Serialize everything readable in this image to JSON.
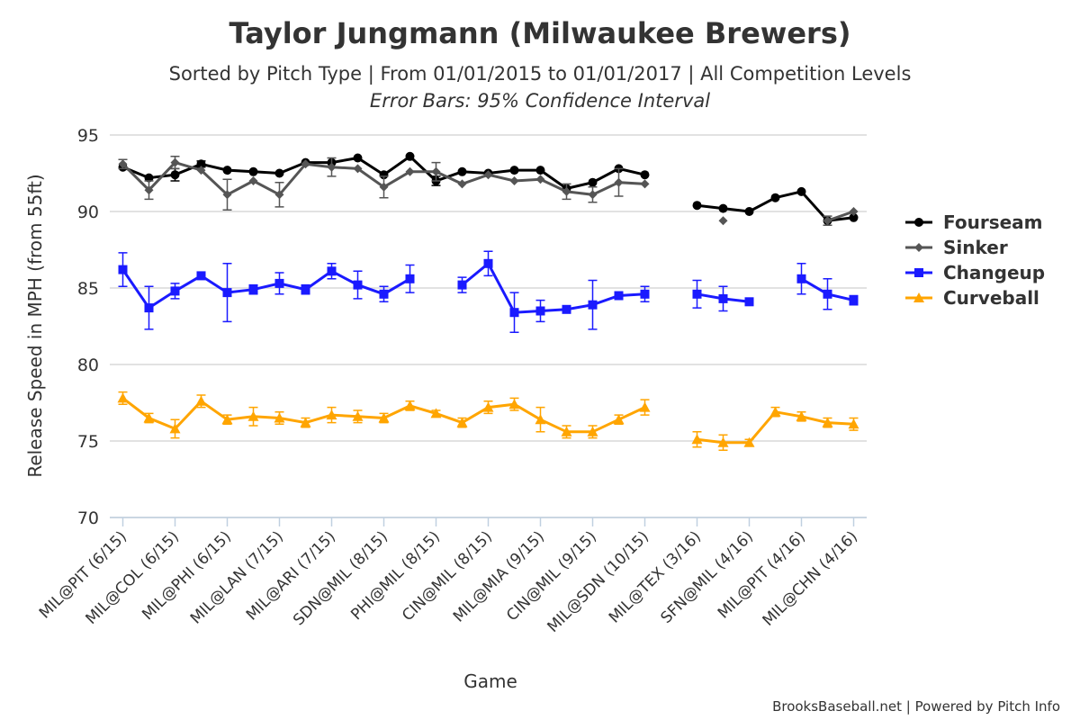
{
  "chart_data": {
    "type": "line",
    "title": "Taylor Jungmann (Milwaukee Brewers)",
    "subtitle": "Sorted by Pitch Type | From 01/01/2015 to 01/01/2017 | All Competition Levels",
    "note": "Error Bars: 95% Confidence Interval",
    "x_label": "Game",
    "y_label": "Release Speed in MPH (from 55ft)",
    "credits": "BrooksBaseball.net | Powered by Pitch Info",
    "categories": [
      "MIL@PIT (6/15)",
      null,
      "MIL@COL (6/15)",
      null,
      "MIL@PHI (6/15)",
      null,
      "MIL@LAN (7/15)",
      null,
      "MIL@ARI (7/15)",
      null,
      "SDN@MIL (8/15)",
      null,
      "PHI@MIL (8/15)",
      null,
      "CIN@MIL (8/15)",
      null,
      "MIL@MIA (9/15)",
      null,
      "CIN@MIL (9/15)",
      null,
      "MIL@SDN (10/15)",
      null,
      "MIL@TEX (3/16)",
      null,
      "SFN@MIL (4/16)",
      null,
      "MIL@PIT (4/16)",
      null,
      "MIL@CHN (4/16)"
    ],
    "ylim": [
      70,
      95
    ],
    "yticks": [
      70,
      75,
      80,
      85,
      90,
      95
    ],
    "grid": true,
    "legend": "right",
    "series": [
      {
        "name": "Fourseam",
        "color": "#000000",
        "marker": "circle",
        "values": [
          92.9,
          92.2,
          92.4,
          93.1,
          92.7,
          92.6,
          92.5,
          93.2,
          93.2,
          93.5,
          92.4,
          93.6,
          92.0,
          92.6,
          92.5,
          92.7,
          92.7,
          91.5,
          91.9,
          92.8,
          92.4,
          null,
          90.4,
          90.2,
          90.0,
          90.9,
          91.3,
          89.4,
          89.6
        ],
        "errors": [
          null,
          null,
          0.4,
          0.2,
          null,
          null,
          null,
          null,
          null,
          null,
          null,
          null,
          0.3,
          null,
          null,
          null,
          null,
          null,
          null,
          null,
          null,
          null,
          null,
          null,
          null,
          null,
          null,
          null,
          null
        ]
      },
      {
        "name": "Sinker",
        "color": "#555555",
        "marker": "diamond",
        "values": [
          93.1,
          91.4,
          93.2,
          92.7,
          91.1,
          92.0,
          91.1,
          93.1,
          92.9,
          92.8,
          91.6,
          92.6,
          92.6,
          91.8,
          92.4,
          92.0,
          92.1,
          91.3,
          91.1,
          91.9,
          91.8,
          null,
          null,
          89.4,
          null,
          null,
          null,
          89.4,
          90.0
        ],
        "errors": [
          0.3,
          0.6,
          0.4,
          null,
          1.0,
          null,
          0.8,
          null,
          0.6,
          null,
          0.7,
          null,
          0.6,
          null,
          null,
          null,
          null,
          0.5,
          0.5,
          0.9,
          null,
          null,
          null,
          null,
          null,
          null,
          null,
          0.3,
          null
        ]
      },
      {
        "name": "Changeup",
        "color": "#1a1aff",
        "marker": "square",
        "values": [
          86.2,
          83.7,
          84.8,
          85.8,
          84.7,
          84.9,
          85.3,
          84.9,
          86.1,
          85.2,
          84.6,
          85.6,
          null,
          85.2,
          86.6,
          83.4,
          83.5,
          83.6,
          83.9,
          84.5,
          84.6,
          null,
          84.6,
          84.3,
          84.1,
          null,
          85.6,
          84.6,
          84.2
        ],
        "errors": [
          1.1,
          1.4,
          0.5,
          null,
          1.9,
          0.3,
          0.7,
          0.3,
          0.5,
          0.9,
          0.5,
          0.9,
          null,
          0.5,
          0.8,
          1.3,
          0.7,
          null,
          1.6,
          null,
          0.5,
          null,
          0.9,
          0.8,
          null,
          null,
          1.0,
          1.0,
          0.3
        ]
      },
      {
        "name": "Curveball",
        "color": "#ffa500",
        "marker": "triangle",
        "values": [
          77.8,
          76.5,
          75.8,
          77.6,
          76.4,
          76.6,
          76.5,
          76.2,
          76.7,
          76.6,
          76.5,
          77.3,
          76.8,
          76.2,
          77.2,
          77.4,
          76.4,
          75.6,
          75.6,
          76.4,
          77.2,
          null,
          75.1,
          74.9,
          74.9,
          76.9,
          76.6,
          76.2,
          76.1
        ],
        "errors": [
          0.4,
          0.3,
          0.6,
          0.4,
          0.3,
          0.6,
          0.4,
          0.3,
          0.5,
          0.4,
          0.3,
          0.3,
          0.2,
          0.3,
          0.4,
          0.4,
          0.8,
          0.4,
          0.4,
          0.3,
          0.5,
          null,
          0.5,
          0.5,
          0.2,
          0.3,
          0.3,
          0.3,
          0.4
        ]
      }
    ]
  }
}
